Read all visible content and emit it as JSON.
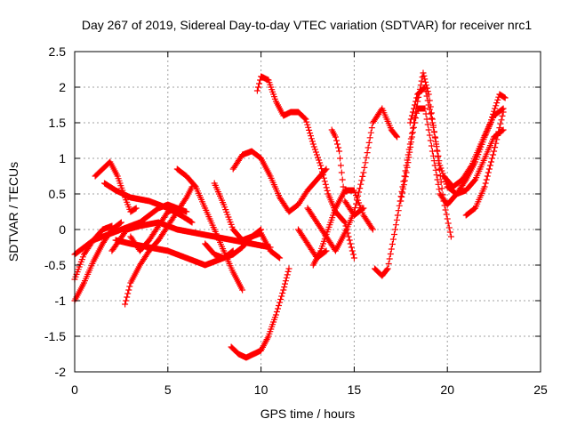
{
  "chart_data": {
    "type": "scatter",
    "title": "Day 267 of 2019, Sidereal Day-to-day VTEC variation (SDTVAR) for receiver nrc1",
    "xlabel": "GPS time / hours",
    "ylabel": "SDTVAR / TECUs",
    "xlim": [
      0,
      25
    ],
    "ylim": [
      -2,
      2.5
    ],
    "xticks": [
      "0",
      "5",
      "10",
      "15",
      "20",
      "25"
    ],
    "yticks": [
      "2.5",
      "2",
      "1.5",
      "1",
      "0.5",
      "0",
      "-0.5",
      "-1",
      "-1.5",
      "-2"
    ],
    "grid": true,
    "marker": "+",
    "color": "#ff0000",
    "arcs": [
      [
        [
          0.0,
          -1.0
        ],
        [
          0.5,
          -0.75
        ],
        [
          1.0,
          -0.45
        ],
        [
          1.5,
          -0.2
        ],
        [
          2.0,
          0.0
        ],
        [
          2.5,
          0.1
        ]
      ],
      [
        [
          0.0,
          -0.7
        ],
        [
          0.5,
          -0.35
        ],
        [
          1.0,
          -0.15
        ],
        [
          1.5,
          0.0
        ],
        [
          2.0,
          0.05
        ]
      ],
      [
        [
          0.0,
          -0.35
        ],
        [
          0.5,
          -0.25
        ],
        [
          1.0,
          -0.15
        ],
        [
          1.5,
          -0.1
        ],
        [
          2.0,
          -0.05
        ],
        [
          2.5,
          0.0
        ],
        [
          3.0,
          0.05
        ],
        [
          3.5,
          0.1
        ],
        [
          4.0,
          0.2
        ],
        [
          4.5,
          0.3
        ],
        [
          5.0,
          0.35
        ],
        [
          5.5,
          0.3
        ],
        [
          6.0,
          0.25
        ]
      ],
      [
        [
          1.1,
          0.75
        ],
        [
          1.5,
          0.85
        ],
        [
          1.9,
          0.95
        ],
        [
          2.3,
          0.75
        ],
        [
          2.7,
          0.45
        ],
        [
          3.0,
          0.25
        ],
        [
          3.3,
          0.3
        ]
      ],
      [
        [
          1.6,
          0.65
        ],
        [
          2.2,
          0.55
        ],
        [
          3.0,
          0.45
        ],
        [
          4.0,
          0.4
        ],
        [
          5.0,
          0.3
        ],
        [
          5.7,
          0.2
        ],
        [
          6.3,
          0.1
        ]
      ],
      [
        [
          2.7,
          -1.05
        ],
        [
          3.0,
          -0.75
        ],
        [
          3.5,
          -0.5
        ],
        [
          4.0,
          -0.3
        ],
        [
          4.5,
          -0.15
        ],
        [
          5.0,
          0.05
        ],
        [
          5.5,
          0.25
        ],
        [
          6.0,
          0.45
        ],
        [
          6.3,
          0.6
        ]
      ],
      [
        [
          2.2,
          -0.15
        ],
        [
          3.0,
          -0.2
        ],
        [
          4.0,
          -0.25
        ],
        [
          5.0,
          -0.3
        ],
        [
          6.0,
          -0.4
        ],
        [
          7.0,
          -0.5
        ],
        [
          7.5,
          -0.45
        ],
        [
          8.0,
          -0.4
        ],
        [
          8.5,
          -0.3
        ]
      ],
      [
        [
          3.0,
          -0.1
        ],
        [
          3.5,
          -0.3
        ],
        [
          4.0,
          -0.15
        ],
        [
          4.5,
          0.05
        ],
        [
          5.0,
          0.25
        ],
        [
          5.5,
          0.3
        ]
      ],
      [
        [
          2.0,
          -0.3
        ],
        [
          2.8,
          0.0
        ],
        [
          3.5,
          0.05
        ],
        [
          4.5,
          0.1
        ],
        [
          5.5,
          0.0
        ],
        [
          6.5,
          -0.05
        ],
        [
          7.5,
          -0.1
        ],
        [
          8.5,
          -0.15
        ],
        [
          9.5,
          -0.2
        ],
        [
          10.5,
          -0.25
        ]
      ],
      [
        [
          5.5,
          0.85
        ],
        [
          6.0,
          0.75
        ],
        [
          6.5,
          0.6
        ],
        [
          7.0,
          0.3
        ],
        [
          7.5,
          0.0
        ],
        [
          8.0,
          -0.3
        ],
        [
          8.5,
          -0.6
        ],
        [
          9.0,
          -0.85
        ]
      ],
      [
        [
          7.5,
          0.65
        ],
        [
          8.0,
          0.35
        ],
        [
          8.5,
          0.0
        ],
        [
          9.0,
          -0.15
        ],
        [
          9.5,
          -0.1
        ],
        [
          10.0,
          -0.05
        ],
        [
          10.5,
          -0.3
        ],
        [
          11.0,
          -0.4
        ]
      ],
      [
        [
          7.0,
          -0.2
        ],
        [
          7.5,
          -0.35
        ],
        [
          8.0,
          -0.4
        ],
        [
          8.5,
          -0.35
        ],
        [
          9.0,
          -0.25
        ],
        [
          9.5,
          -0.1
        ],
        [
          10.0,
          0.0
        ]
      ],
      [
        [
          8.4,
          -1.65
        ],
        [
          8.8,
          -1.75
        ],
        [
          9.2,
          -1.8
        ],
        [
          9.6,
          -1.75
        ],
        [
          10.0,
          -1.7
        ],
        [
          10.4,
          -1.5
        ],
        [
          10.8,
          -1.2
        ],
        [
          11.2,
          -0.85
        ],
        [
          11.5,
          -0.55
        ]
      ],
      [
        [
          8.5,
          0.85
        ],
        [
          9.0,
          1.05
        ],
        [
          9.5,
          1.1
        ],
        [
          10.0,
          1.0
        ],
        [
          10.5,
          0.75
        ],
        [
          11.0,
          0.45
        ],
        [
          11.5,
          0.25
        ],
        [
          12.0,
          0.35
        ],
        [
          12.5,
          0.55
        ],
        [
          13.0,
          0.7
        ],
        [
          13.5,
          0.85
        ]
      ],
      [
        [
          9.8,
          1.95
        ],
        [
          10.0,
          2.15
        ],
        [
          10.4,
          2.1
        ],
        [
          10.8,
          1.8
        ],
        [
          11.2,
          1.6
        ],
        [
          11.6,
          1.65
        ],
        [
          12.0,
          1.65
        ],
        [
          12.4,
          1.55
        ],
        [
          12.8,
          1.2
        ],
        [
          13.2,
          0.9
        ],
        [
          13.6,
          0.5
        ],
        [
          14.0,
          0.25
        ],
        [
          14.5,
          0.1
        ],
        [
          15.0,
          -0.4
        ]
      ],
      [
        [
          12.0,
          0.0
        ],
        [
          12.5,
          -0.2
        ],
        [
          13.0,
          -0.4
        ],
        [
          13.5,
          -0.3
        ]
      ],
      [
        [
          12.5,
          0.3
        ],
        [
          13.0,
          0.1
        ],
        [
          13.5,
          -0.1
        ],
        [
          14.0,
          -0.3
        ],
        [
          14.5,
          -0.05
        ],
        [
          15.0,
          0.25
        ],
        [
          15.5,
          0.8
        ],
        [
          16.0,
          1.5
        ],
        [
          16.5,
          1.7
        ],
        [
          17.0,
          1.4
        ],
        [
          17.3,
          1.3
        ]
      ],
      [
        [
          12.8,
          -0.5
        ],
        [
          13.2,
          -0.3
        ],
        [
          13.6,
          0.0
        ],
        [
          14.0,
          0.3
        ],
        [
          14.5,
          0.55
        ],
        [
          15.0,
          0.55
        ],
        [
          15.5,
          0.2
        ],
        [
          16.0,
          0.0
        ]
      ],
      [
        [
          13.8,
          1.4
        ],
        [
          14.0,
          1.3
        ],
        [
          14.2,
          1.1
        ],
        [
          14.5,
          0.4
        ],
        [
          15.0,
          0.2
        ],
        [
          15.5,
          0.3
        ]
      ],
      [
        [
          16.1,
          -0.55
        ],
        [
          16.5,
          -0.65
        ],
        [
          16.8,
          -0.55
        ],
        [
          17.2,
          0.0
        ],
        [
          17.6,
          0.6
        ],
        [
          18.0,
          1.2
        ],
        [
          18.4,
          1.8
        ],
        [
          18.7,
          2.2
        ],
        [
          19.0,
          1.9
        ],
        [
          19.4,
          1.2
        ],
        [
          19.8,
          0.4
        ],
        [
          20.2,
          -0.1
        ]
      ],
      [
        [
          17.5,
          0.4
        ],
        [
          17.8,
          0.8
        ],
        [
          18.1,
          1.3
        ],
        [
          18.4,
          1.7
        ],
        [
          18.8,
          1.7
        ],
        [
          19.2,
          1.1
        ],
        [
          19.6,
          0.5
        ],
        [
          20.0,
          0.35
        ],
        [
          20.5,
          0.5
        ],
        [
          21.0,
          0.7
        ],
        [
          21.5,
          0.95
        ],
        [
          22.0,
          1.3
        ],
        [
          22.5,
          1.6
        ],
        [
          23.0,
          1.7
        ]
      ],
      [
        [
          18.0,
          1.5
        ],
        [
          18.4,
          1.9
        ],
        [
          18.8,
          2.0
        ],
        [
          19.2,
          1.5
        ],
        [
          19.6,
          0.9
        ],
        [
          20.0,
          0.6
        ],
        [
          20.5,
          0.5
        ],
        [
          21.0,
          0.55
        ],
        [
          21.5,
          0.7
        ],
        [
          22.0,
          1.0
        ],
        [
          22.5,
          1.3
        ],
        [
          23.0,
          1.4
        ]
      ],
      [
        [
          19.8,
          0.75
        ],
        [
          20.3,
          0.6
        ],
        [
          20.8,
          0.7
        ],
        [
          21.3,
          0.9
        ],
        [
          21.8,
          1.2
        ],
        [
          22.3,
          1.5
        ],
        [
          22.8,
          1.9
        ],
        [
          23.1,
          1.85
        ]
      ],
      [
        [
          21.0,
          0.2
        ],
        [
          21.5,
          0.3
        ],
        [
          22.0,
          0.6
        ],
        [
          22.5,
          1.1
        ],
        [
          23.0,
          1.65
        ]
      ]
    ]
  }
}
